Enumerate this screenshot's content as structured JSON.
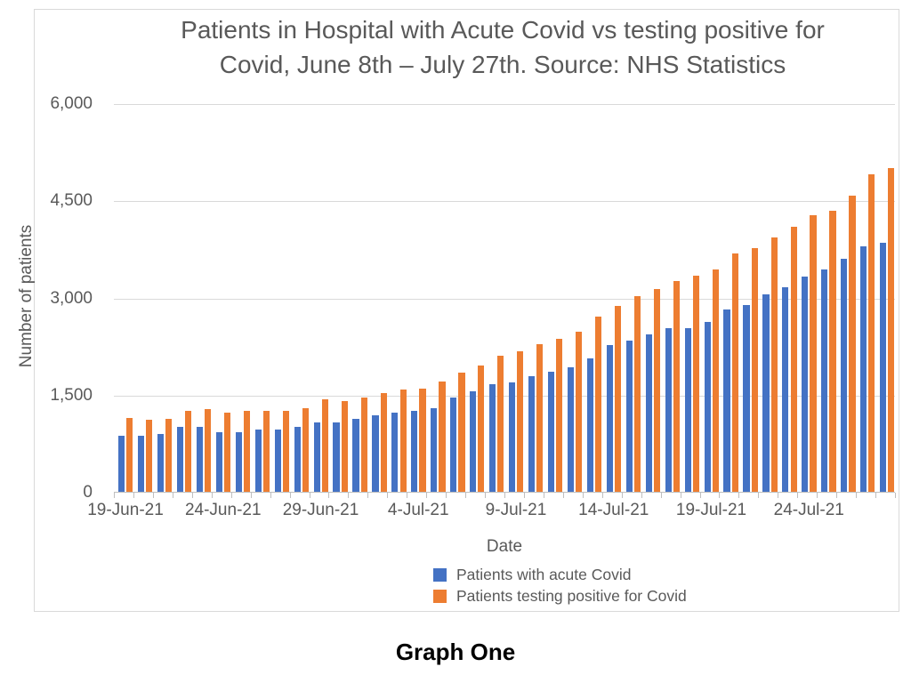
{
  "page": {
    "caption": "Graph One"
  },
  "chart_data": {
    "type": "bar",
    "title": "Patients in Hospital with Acute Covid vs testing positive for Covid, June 8th – July 27th. Source: NHS Statistics",
    "title_lines": [
      "Patients in Hospital with Acute Covid vs testing positive for",
      "Covid, June 8th – July 27th. Source: NHS Statistics"
    ],
    "xlabel": "Date",
    "ylabel": "Number of patients",
    "ylim": [
      0,
      6000
    ],
    "ytick_values": [
      0,
      1500,
      3000,
      4500,
      6000
    ],
    "ytick_labels": [
      "0",
      "1,500",
      "3,000",
      "4,500",
      "6,000"
    ],
    "xtick_label_indices": [
      0,
      5,
      10,
      15,
      20,
      25,
      30,
      35
    ],
    "xtick_labels": [
      "19-Jun-21",
      "24-Jun-21",
      "29-Jun-21",
      "4-Jul-21",
      "9-Jul-21",
      "14-Jul-21",
      "19-Jul-21",
      "24-Jul-21"
    ],
    "grid": true,
    "legend_position": "bottom",
    "categories": [
      "19-Jun-21",
      "20-Jun-21",
      "21-Jun-21",
      "22-Jun-21",
      "23-Jun-21",
      "24-Jun-21",
      "25-Jun-21",
      "26-Jun-21",
      "27-Jun-21",
      "28-Jun-21",
      "29-Jun-21",
      "30-Jun-21",
      "1-Jul-21",
      "2-Jul-21",
      "3-Jul-21",
      "4-Jul-21",
      "5-Jul-21",
      "6-Jul-21",
      "7-Jul-21",
      "8-Jul-21",
      "9-Jul-21",
      "10-Jul-21",
      "11-Jul-21",
      "12-Jul-21",
      "13-Jul-21",
      "14-Jul-21",
      "15-Jul-21",
      "16-Jul-21",
      "17-Jul-21",
      "18-Jul-21",
      "19-Jul-21",
      "20-Jul-21",
      "21-Jul-21",
      "22-Jul-21",
      "23-Jul-21",
      "24-Jul-21",
      "25-Jul-21",
      "26-Jul-21",
      "27-Jul-21",
      "28-Jul-21"
    ],
    "series": [
      {
        "name": "Patients with acute Covid",
        "color": "#4472C4",
        "values": [
          880,
          880,
          910,
          1010,
          1010,
          930,
          940,
          980,
          970,
          1020,
          1090,
          1090,
          1140,
          1190,
          1230,
          1260,
          1310,
          1470,
          1560,
          1670,
          1700,
          1800,
          1870,
          1940,
          2080,
          2280,
          2350,
          2450,
          2540,
          2540,
          2630,
          2830,
          2900,
          3060,
          3170,
          3340,
          3450,
          3610,
          3800,
          3860
        ]
      },
      {
        "name": "Patients testing positive for Covid",
        "color": "#ED7D31",
        "values": [
          1150,
          1130,
          1140,
          1270,
          1290,
          1230,
          1260,
          1270,
          1270,
          1310,
          1440,
          1420,
          1470,
          1540,
          1590,
          1610,
          1710,
          1860,
          1960,
          2110,
          2180,
          2290,
          2380,
          2480,
          2720,
          2890,
          3030,
          3150,
          3270,
          3350,
          3440,
          3700,
          3780,
          3940,
          4100,
          4280,
          4350,
          4590,
          4910,
          5010
        ]
      }
    ],
    "colors": {
      "grid": "#d9d9d9",
      "axis": "#bfbfbf",
      "text": "#595959"
    }
  }
}
